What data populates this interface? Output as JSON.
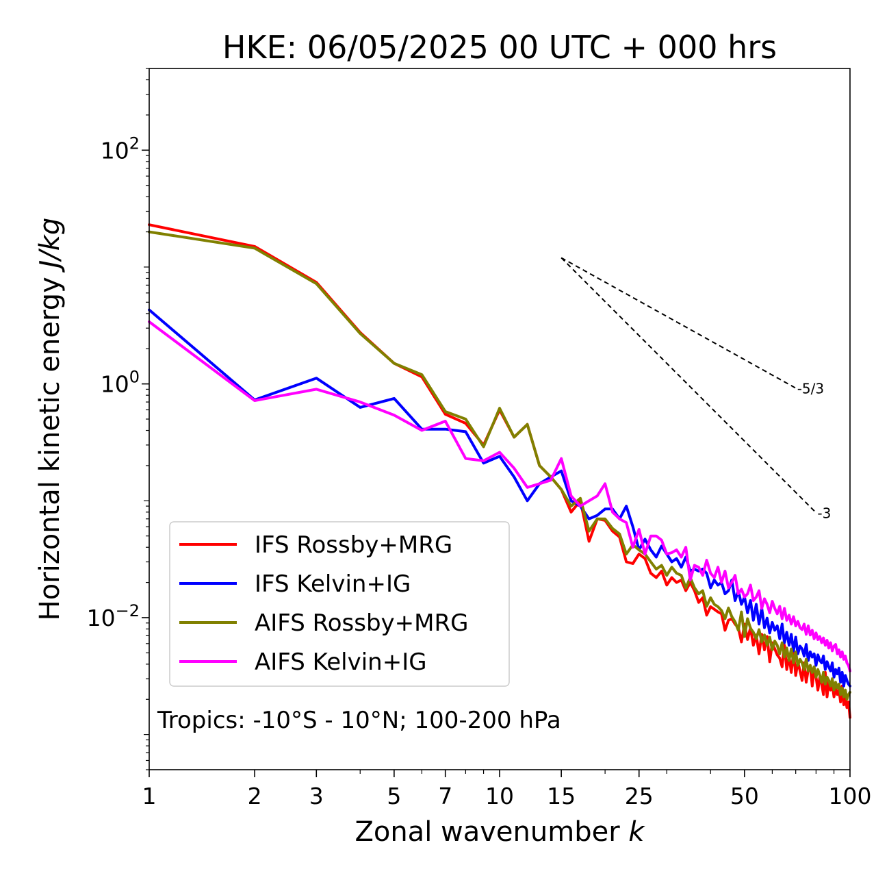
{
  "chart_data": {
    "type": "line",
    "title": "HKE: 06/05/2025 00 UTC + 000 hrs",
    "xlabel": "Zonal wavenumber",
    "xlabel_var": "k",
    "ylabel": "Horizontal kinetic energy",
    "ylabel_unit": "J/kg",
    "xscale": "log",
    "yscale": "log",
    "xlim": [
      1,
      100
    ],
    "ylim": [
      0.0005,
      500
    ],
    "x_ticks": [
      1,
      2,
      3,
      5,
      7,
      10,
      15,
      25,
      50,
      100
    ],
    "x_tick_labels": [
      "1",
      "2",
      "3",
      "5",
      "7",
      "10",
      "15",
      "25",
      "50",
      "100"
    ],
    "y_ticks": [
      {
        "value": 0.01,
        "base": "10",
        "exp": "−2"
      },
      {
        "value": 1,
        "base": "10",
        "exp": "0"
      },
      {
        "value": 100,
        "base": "10",
        "exp": "2"
      }
    ],
    "grid": false,
    "legend_position": "lower-left",
    "annotation": "Tropics: -10°S - 10°N; 100-200 hPa",
    "reference_slopes": [
      {
        "label": "-5/3",
        "x_start": 15,
        "y_start": 12.0,
        "x_end": 70,
        "slope": -1.6667
      },
      {
        "label": "-3",
        "x_start": 15,
        "y_start": 12.0,
        "x_end": 80,
        "slope": -3
      }
    ],
    "series": [
      {
        "name": "IFS Rossby+MRG",
        "color": "#ff0000",
        "x": [
          1,
          2,
          3,
          4,
          5,
          6,
          7,
          8,
          9,
          10,
          11,
          12,
          13,
          14,
          15,
          16,
          17,
          18,
          19,
          20,
          21,
          22,
          23,
          24,
          25,
          26,
          27,
          28,
          29,
          30,
          31,
          32,
          33,
          34,
          35,
          36,
          37,
          38,
          39,
          40,
          41,
          42,
          43,
          44,
          45,
          46,
          47,
          48,
          49,
          50,
          51,
          52,
          53,
          54,
          55,
          56,
          57,
          58,
          59,
          60,
          61,
          62,
          63,
          64,
          65,
          66,
          67,
          68,
          69,
          70,
          71,
          72,
          73,
          74,
          75,
          76,
          77,
          78,
          79,
          80,
          81,
          82,
          83,
          84,
          85,
          86,
          87,
          88,
          89,
          90,
          91,
          92,
          93,
          94,
          95,
          96,
          97,
          98,
          99,
          100
        ],
        "y": [
          23,
          15,
          7.4,
          2.75,
          1.5,
          1.15,
          0.55,
          0.46,
          0.3,
          0.6,
          0.35,
          0.45,
          0.2,
          0.16,
          0.125,
          0.08,
          0.1,
          0.045,
          0.07,
          0.068,
          0.055,
          0.049,
          0.03,
          0.029,
          0.035,
          0.032,
          0.024,
          0.022,
          0.025,
          0.019,
          0.022,
          0.02,
          0.021,
          0.017,
          0.02,
          0.017,
          0.0135,
          0.0148,
          0.0105,
          0.0124,
          0.0118,
          0.0112,
          0.0108,
          0.0078,
          0.0095,
          0.0098,
          0.0088,
          0.0082,
          0.0062,
          0.0088,
          0.0065,
          0.0082,
          0.0058,
          0.0071,
          0.0049,
          0.0072,
          0.0053,
          0.0069,
          0.0042,
          0.0061,
          0.0054,
          0.0048,
          0.0045,
          0.0038,
          0.0058,
          0.0036,
          0.0047,
          0.0034,
          0.0051,
          0.0032,
          0.0042,
          0.0035,
          0.0029,
          0.0041,
          0.0028,
          0.0036,
          0.0039,
          0.0026,
          0.0035,
          0.0031,
          0.0024,
          0.0031,
          0.0027,
          0.0022,
          0.0034,
          0.0021,
          0.0029,
          0.0024,
          0.0027,
          0.0021,
          0.0025,
          0.0022,
          0.0024,
          0.0019,
          0.0026,
          0.0018,
          0.0021,
          0.0017,
          0.0019,
          0.0014
        ]
      },
      {
        "name": "IFS Kelvin+IG",
        "color": "#0000ff",
        "x": [
          1,
          2,
          3,
          4,
          5,
          6,
          7,
          8,
          9,
          10,
          11,
          12,
          13,
          14,
          15,
          16,
          17,
          18,
          19,
          20,
          21,
          22,
          23,
          24,
          25,
          26,
          27,
          28,
          29,
          30,
          31,
          32,
          33,
          34,
          35,
          36,
          37,
          38,
          39,
          40,
          41,
          42,
          43,
          44,
          45,
          46,
          47,
          48,
          49,
          50,
          51,
          52,
          53,
          54,
          55,
          56,
          57,
          58,
          59,
          60,
          61,
          62,
          63,
          64,
          65,
          66,
          67,
          68,
          69,
          70,
          71,
          72,
          73,
          74,
          75,
          76,
          77,
          78,
          79,
          80,
          81,
          82,
          83,
          84,
          85,
          86,
          87,
          88,
          89,
          90,
          91,
          92,
          93,
          94,
          95,
          96,
          97,
          98,
          99,
          100
        ],
        "y": [
          4.3,
          0.73,
          1.12,
          0.63,
          0.75,
          0.41,
          0.41,
          0.39,
          0.21,
          0.24,
          0.16,
          0.1,
          0.14,
          0.16,
          0.18,
          0.1,
          0.09,
          0.07,
          0.075,
          0.085,
          0.085,
          0.07,
          0.09,
          0.06,
          0.038,
          0.047,
          0.038,
          0.033,
          0.041,
          0.035,
          0.03,
          0.032,
          0.027,
          0.033,
          0.025,
          0.026,
          0.025,
          0.026,
          0.024,
          0.018,
          0.021,
          0.019,
          0.02,
          0.016,
          0.017,
          0.021,
          0.014,
          0.017,
          0.013,
          0.015,
          0.011,
          0.014,
          0.0095,
          0.013,
          0.0088,
          0.012,
          0.0082,
          0.0099,
          0.0074,
          0.0091,
          0.0078,
          0.0085,
          0.0066,
          0.0088,
          0.0061,
          0.0075,
          0.0058,
          0.0072,
          0.0052,
          0.0068,
          0.0049,
          0.0057,
          0.0054,
          0.0047,
          0.0059,
          0.0043,
          0.0051,
          0.0046,
          0.0049,
          0.0039,
          0.0048,
          0.0043,
          0.0041,
          0.0047,
          0.0036,
          0.0042,
          0.0038,
          0.0035,
          0.0041,
          0.0031,
          0.0036,
          0.0033,
          0.0037,
          0.0028,
          0.0034,
          0.0026,
          0.0032,
          0.0029,
          0.0027,
          0.0026
        ]
      },
      {
        "name": "AIFS Rossby+MRG",
        "color": "#808000",
        "x": [
          1,
          2,
          3,
          4,
          5,
          6,
          7,
          8,
          9,
          10,
          11,
          12,
          13,
          14,
          15,
          16,
          17,
          18,
          19,
          20,
          21,
          22,
          23,
          24,
          25,
          26,
          27,
          28,
          29,
          30,
          31,
          32,
          33,
          34,
          35,
          36,
          37,
          38,
          39,
          40,
          41,
          42,
          43,
          44,
          45,
          46,
          47,
          48,
          49,
          50,
          51,
          52,
          53,
          54,
          55,
          56,
          57,
          58,
          59,
          60,
          61,
          62,
          63,
          64,
          65,
          66,
          67,
          68,
          69,
          70,
          71,
          72,
          73,
          74,
          75,
          76,
          77,
          78,
          79,
          80,
          81,
          82,
          83,
          84,
          85,
          86,
          87,
          88,
          89,
          90,
          91,
          92,
          93,
          94,
          95,
          96,
          97,
          98,
          99,
          100
        ],
        "y": [
          20,
          14.5,
          7.2,
          2.7,
          1.5,
          1.2,
          0.58,
          0.5,
          0.29,
          0.62,
          0.35,
          0.45,
          0.2,
          0.16,
          0.125,
          0.09,
          0.105,
          0.055,
          0.07,
          0.07,
          0.058,
          0.052,
          0.035,
          0.042,
          0.038,
          0.035,
          0.03,
          0.026,
          0.028,
          0.023,
          0.027,
          0.024,
          0.023,
          0.018,
          0.022,
          0.018,
          0.016,
          0.017,
          0.0125,
          0.0148,
          0.013,
          0.0124,
          0.0115,
          0.0098,
          0.0121,
          0.0102,
          0.0092,
          0.0078,
          0.0112,
          0.0069,
          0.0098,
          0.0081,
          0.0075,
          0.0066,
          0.0079,
          0.0062,
          0.0071,
          0.0058,
          0.0068,
          0.0053,
          0.0063,
          0.0058,
          0.0049,
          0.0061,
          0.0046,
          0.0055,
          0.0043,
          0.0054,
          0.0041,
          0.0051,
          0.0039,
          0.0044,
          0.0041,
          0.0036,
          0.0044,
          0.0035,
          0.0039,
          0.0034,
          0.0038,
          0.0031,
          0.0036,
          0.0032,
          0.0028,
          0.0034,
          0.0027,
          0.0031,
          0.0029,
          0.0026,
          0.003,
          0.0024,
          0.0028,
          0.0025,
          0.0027,
          0.0022,
          0.0025,
          0.0021,
          0.0024,
          0.002,
          0.0022,
          0.0023
        ]
      },
      {
        "name": "AIFS Kelvin+IG",
        "color": "#ff00ff",
        "x": [
          1,
          2,
          3,
          4,
          5,
          6,
          7,
          8,
          9,
          10,
          11,
          12,
          13,
          14,
          15,
          16,
          17,
          18,
          19,
          20,
          21,
          22,
          23,
          24,
          25,
          26,
          27,
          28,
          29,
          30,
          31,
          32,
          33,
          34,
          35,
          36,
          37,
          38,
          39,
          40,
          41,
          42,
          43,
          44,
          45,
          46,
          47,
          48,
          49,
          50,
          51,
          52,
          53,
          54,
          55,
          56,
          57,
          58,
          59,
          60,
          61,
          62,
          63,
          64,
          65,
          66,
          67,
          68,
          69,
          70,
          71,
          72,
          73,
          74,
          75,
          76,
          77,
          78,
          79,
          80,
          81,
          82,
          83,
          84,
          85,
          86,
          87,
          88,
          89,
          90,
          91,
          92,
          93,
          94,
          95,
          96,
          97,
          98,
          99,
          100
        ],
        "y": [
          3.4,
          0.72,
          0.9,
          0.7,
          0.54,
          0.4,
          0.48,
          0.23,
          0.22,
          0.26,
          0.19,
          0.13,
          0.14,
          0.15,
          0.23,
          0.11,
          0.09,
          0.1,
          0.11,
          0.14,
          0.08,
          0.07,
          0.065,
          0.04,
          0.057,
          0.035,
          0.05,
          0.05,
          0.046,
          0.035,
          0.036,
          0.038,
          0.033,
          0.04,
          0.021,
          0.028,
          0.027,
          0.023,
          0.031,
          0.024,
          0.022,
          0.027,
          0.02,
          0.025,
          0.018,
          0.02,
          0.023,
          0.016,
          0.0175,
          0.015,
          0.016,
          0.019,
          0.014,
          0.015,
          0.017,
          0.012,
          0.0145,
          0.013,
          0.011,
          0.0138,
          0.012,
          0.0108,
          0.0125,
          0.0098,
          0.012,
          0.0095,
          0.0105,
          0.0088,
          0.0102,
          0.0085,
          0.0093,
          0.0082,
          0.0079,
          0.0088,
          0.0072,
          0.0085,
          0.0071,
          0.0078,
          0.0066,
          0.0074,
          0.0065,
          0.0069,
          0.0061,
          0.0067,
          0.0058,
          0.0064,
          0.0055,
          0.0061,
          0.0052,
          0.0057,
          0.0059,
          0.0049,
          0.0053,
          0.0046,
          0.0051,
          0.0044,
          0.0047,
          0.0041,
          0.0039,
          0.0035
        ]
      }
    ]
  }
}
